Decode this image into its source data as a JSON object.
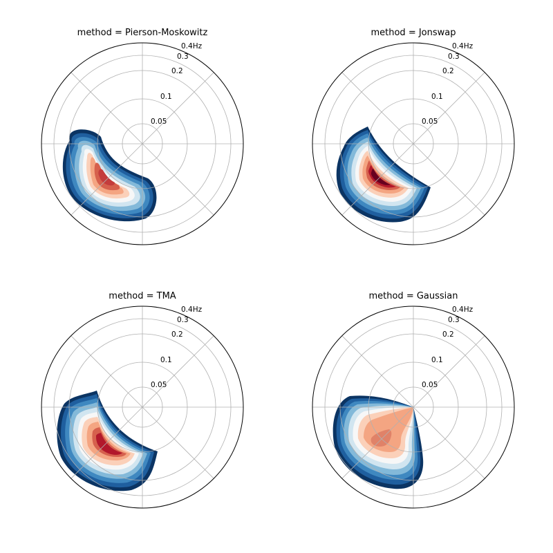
{
  "chart_data": [
    {
      "type": "polar-contour",
      "title": "method = Pierson-Moskowitz",
      "radial_ticks": [
        "0.05",
        "0.1",
        "0.2",
        "0.3",
        "0.4Hz"
      ],
      "radial_tick_values": [
        0.05,
        0.1,
        0.2,
        0.3,
        0.4
      ],
      "angular_gridlines_deg": [
        0,
        45,
        90,
        135,
        180,
        225,
        270,
        315
      ],
      "peak_direction_deg": 225,
      "peak_frequency_hz": 0.1,
      "colormap": "RdBu_r"
    },
    {
      "type": "polar-contour",
      "title": "method = Jonswap",
      "radial_ticks": [
        "0.05",
        "0.1",
        "0.2",
        "0.3",
        "0.4Hz"
      ],
      "radial_tick_values": [
        0.05,
        0.1,
        0.2,
        0.3,
        0.4
      ],
      "angular_gridlines_deg": [
        0,
        45,
        90,
        135,
        180,
        225,
        270,
        315
      ],
      "peak_direction_deg": 225,
      "peak_frequency_hz": 0.1,
      "colormap": "RdBu_r"
    },
    {
      "type": "polar-contour",
      "title": "method = TMA",
      "radial_ticks": [
        "0.05",
        "0.1",
        "0.2",
        "0.3",
        "0.4Hz"
      ],
      "radial_tick_values": [
        0.05,
        0.1,
        0.2,
        0.3,
        0.4
      ],
      "angular_gridlines_deg": [
        0,
        45,
        90,
        135,
        180,
        225,
        270,
        315
      ],
      "peak_direction_deg": 225,
      "peak_frequency_hz": 0.1,
      "colormap": "RdBu_r"
    },
    {
      "type": "polar-contour",
      "title": "method = Gaussian",
      "radial_ticks": [
        "0.05",
        "0.1",
        "0.2",
        "0.3",
        "0.4Hz"
      ],
      "radial_tick_values": [
        0.05,
        0.1,
        0.2,
        0.3,
        0.4
      ],
      "angular_gridlines_deg": [
        0,
        45,
        90,
        135,
        180,
        225,
        270,
        315
      ],
      "peak_direction_deg": 225,
      "peak_frequency_hz": 0.1,
      "colormap": "RdBu_r"
    }
  ]
}
